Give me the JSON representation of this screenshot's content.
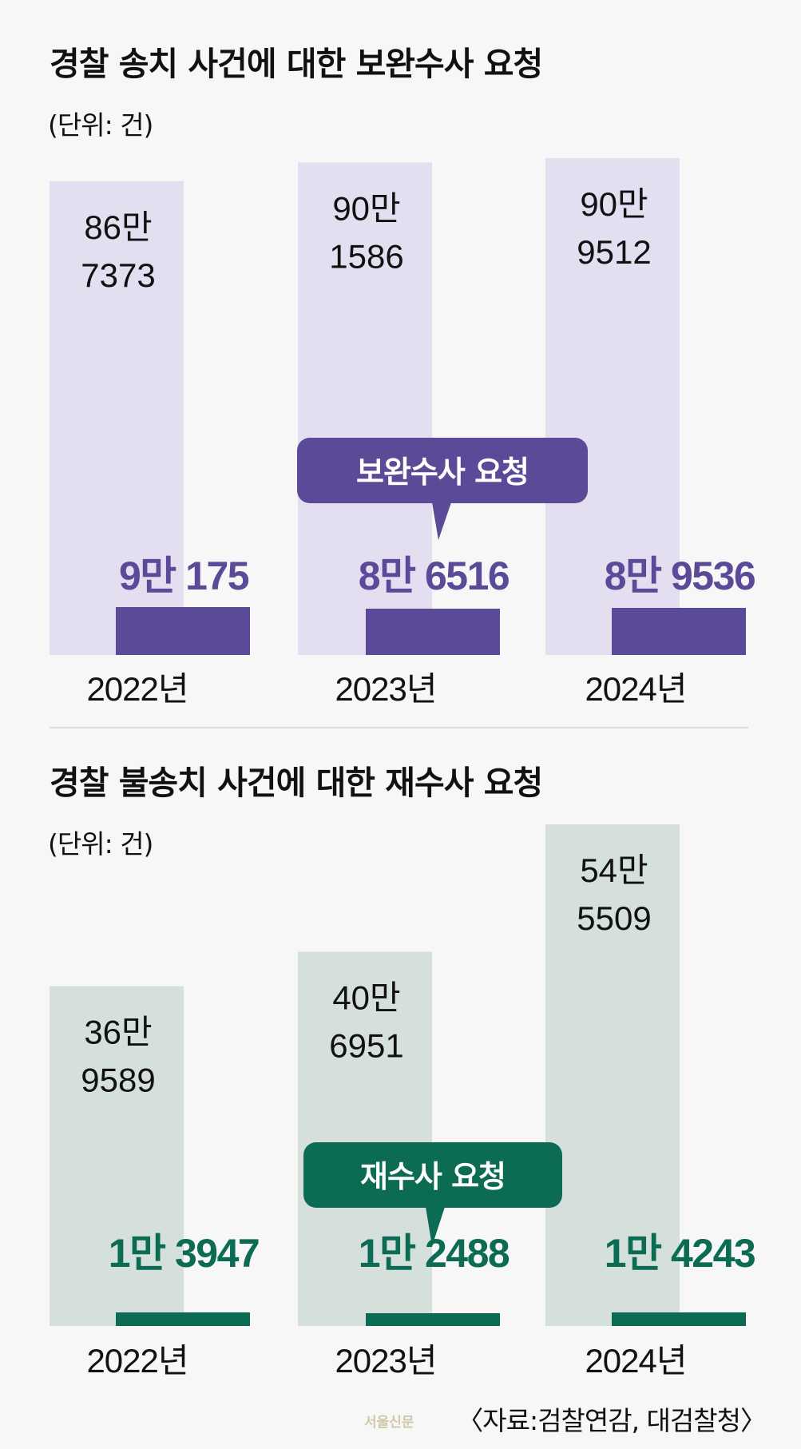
{
  "chart_data": [
    {
      "type": "bar",
      "title": "경찰 송치 사건에 대한 보완수사 요청",
      "unit": "(단위: 건)",
      "categories": [
        "2022년",
        "2023년",
        "2024년"
      ],
      "series": [
        {
          "name": "",
          "values": [
            867373,
            901586,
            909512
          ],
          "labels": [
            [
              "86만",
              "7373"
            ],
            [
              "90만",
              "1586"
            ],
            [
              "90만",
              "9512"
            ]
          ]
        },
        {
          "name": "보완수사 요청",
          "values": [
            90175,
            86516,
            89536
          ],
          "labels": [
            "9만 175",
            "8만 6516",
            "8만 9536"
          ]
        }
      ],
      "callout": "보완수사 요청",
      "colors": {
        "total": "#e4def1",
        "request": "#5b4a97",
        "label": "#5b4a97"
      }
    },
    {
      "type": "bar",
      "title": "경찰 불송치 사건에 대한 재수사 요청",
      "unit": "(단위: 건)",
      "categories": [
        "2022년",
        "2023년",
        "2024년"
      ],
      "series": [
        {
          "name": "",
          "values": [
            369589,
            406951,
            545509
          ],
          "labels": [
            [
              "36만",
              "9589"
            ],
            [
              "40만",
              "6951"
            ],
            [
              "54만",
              "5509"
            ]
          ]
        },
        {
          "name": "재수사 요청",
          "values": [
            13947,
            12488,
            14243
          ],
          "labels": [
            "1만 3947",
            "1만 2488",
            "1만 4243"
          ]
        }
      ],
      "callout": "재수사 요청",
      "colors": {
        "total": "#d5e0dc",
        "request": "#0b6b53",
        "label": "#0b6b53"
      }
    }
  ],
  "source": "〈자료:검찰연감, 대검찰청〉",
  "watermark": "서울신문"
}
